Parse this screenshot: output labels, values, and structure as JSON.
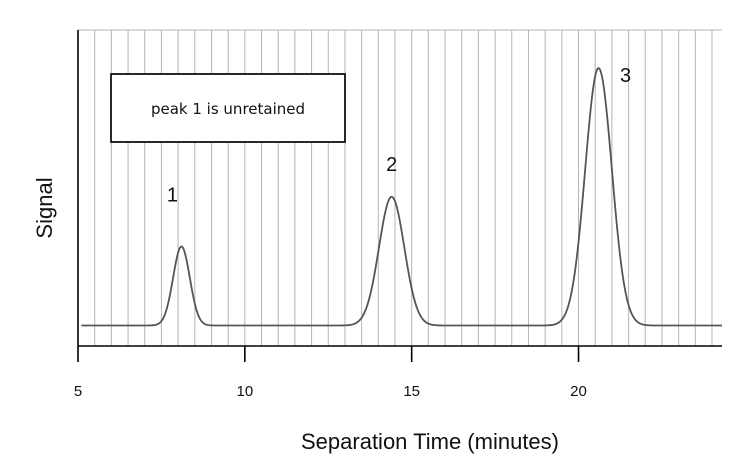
{
  "chart_data": {
    "type": "line",
    "title": "",
    "xlabel": "Separation Time (minutes)",
    "ylabel": "Signal",
    "xlim": [
      5,
      24.3
    ],
    "ylim": [
      0,
      1.08
    ],
    "xticks": [
      5,
      10,
      15,
      20
    ],
    "grid": {
      "vertical": true,
      "horizontal": false,
      "minor_step": 0.5
    },
    "baseline": 0.07,
    "peaks": [
      {
        "label": "1",
        "time": 8.1,
        "height": 0.27,
        "width": 0.25
      },
      {
        "label": "2",
        "time": 14.4,
        "height": 0.44,
        "width": 0.38
      },
      {
        "label": "3",
        "time": 20.6,
        "height": 0.88,
        "width": 0.4
      }
    ],
    "annotation": "peak 1 is unretained",
    "colors": {
      "trace": "#555555",
      "grid": "#b5b5b5",
      "axis": "#000000"
    }
  }
}
